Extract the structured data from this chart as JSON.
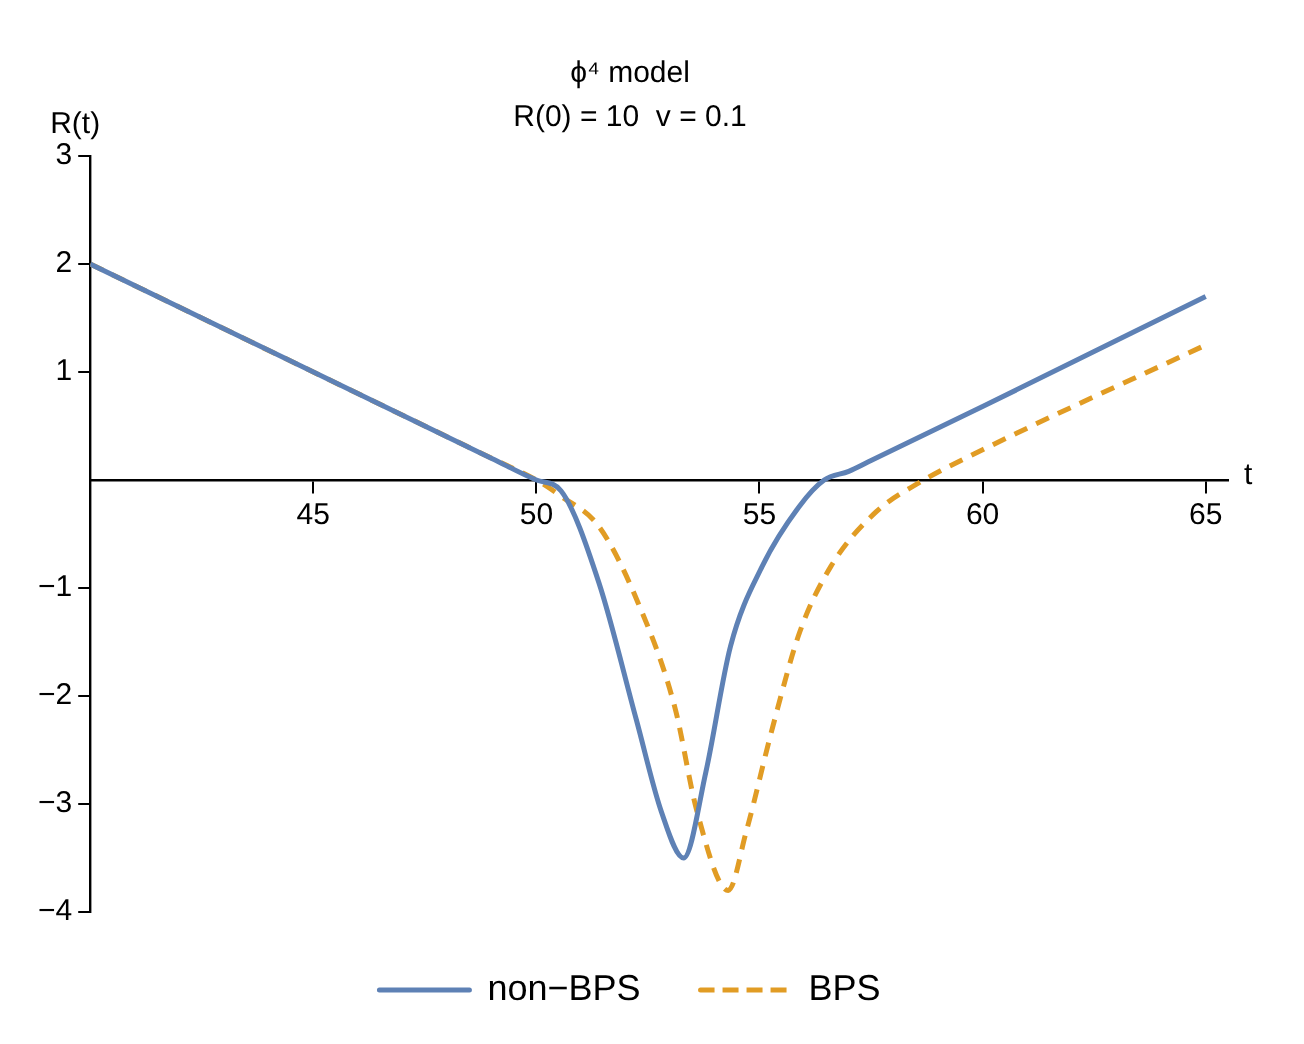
{
  "chart_data": {
    "type": "line",
    "title": "ϕ⁴ model",
    "subtitle": "R(0) = 10  v = 0.1",
    "xlabel": "t",
    "ylabel": "R(t)",
    "xlim": [
      40,
      65.5
    ],
    "ylim": [
      -4,
      3
    ],
    "xticks": [
      45,
      50,
      55,
      60,
      65
    ],
    "yticks": [
      {
        "value": -4,
        "label": "−4"
      },
      {
        "value": -3,
        "label": "−3"
      },
      {
        "value": -2,
        "label": "−2"
      },
      {
        "value": -1,
        "label": "−1"
      },
      1,
      2,
      3
    ],
    "legend": "bottom",
    "grid": false,
    "marker": "none",
    "series": [
      {
        "name": "non−BPS",
        "color": "#5e81b5",
        "line_style": "solid",
        "x": [
          40,
          49,
          50,
          50.55,
          51.4,
          52.24,
          52.8,
          53.3,
          53.8,
          54.35,
          55.06,
          55.9,
          56.45,
          57,
          57.5,
          60,
          65
        ],
        "values": [
          2,
          0.2,
          0,
          -0.1,
          -0.95,
          -2.22,
          -3.07,
          -3.5,
          -2.7,
          -1.54,
          -0.8,
          -0.24,
          0,
          0.08,
          0.18,
          0.68,
          1.7
        ]
      },
      {
        "name": "BPS",
        "color": "#e19c24",
        "line_style": "dashed",
        "x": [
          40,
          49,
          50,
          50.55,
          51.4,
          52.24,
          53.1,
          53.6,
          54.3,
          54.7,
          55.3,
          55.9,
          56.6,
          57.6,
          58.6,
          60,
          65
        ],
        "values": [
          2,
          0.2,
          0,
          -0.15,
          -0.43,
          -1.1,
          -2.1,
          -3.07,
          -3.8,
          -3.26,
          -2.28,
          -1.41,
          -0.8,
          -0.3,
          -0.02,
          0.28,
          1.25
        ]
      }
    ]
  }
}
